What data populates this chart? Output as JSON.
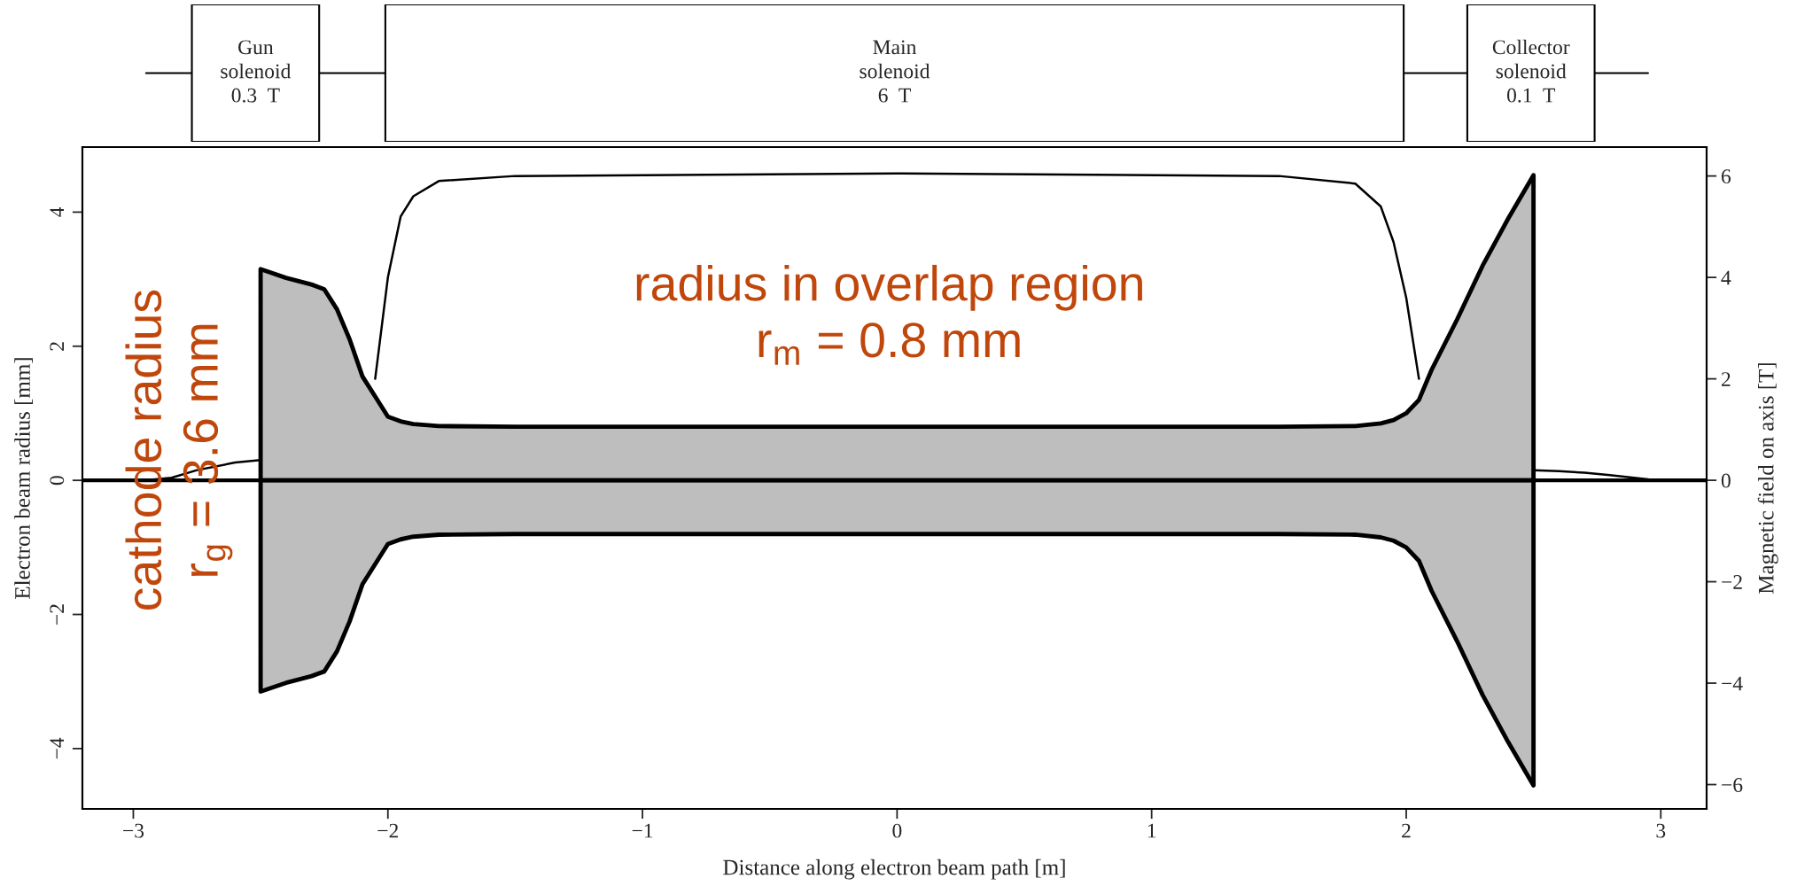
{
  "chart_data": {
    "type": "area",
    "xlabel": "Distance along electron beam path [m]",
    "ylabel": "Electron beam radius [mm]",
    "y2label": "Magnetic field on axis [T]",
    "annotations": [
      "Gun\nsolenoid\n0.3  T",
      "Main\nsolenoid\n6  T",
      "Collector\nsolenoid\n0.1  T",
      "radius in overlap region\nr$_{m}$ = 0.8 mm",
      "cathode radius\nr$_{g}$ = 3.6 mm"
    ],
    "series": [
      {
        "color": "#bebebe",
        "x": [
          -2.5,
          -2.4,
          -2.3,
          -2.25,
          -2.2,
          -2.15,
          -2.1,
          -2.05,
          -2.0,
          -1.95,
          -1.9,
          -1.8,
          -1.5,
          0,
          1.5,
          1.8,
          1.9,
          1.95,
          2.0,
          2.05,
          2.1,
          2.2,
          2.3,
          2.4,
          2.5
        ],
        "values": [
          3.15,
          3.02,
          2.92,
          2.85,
          2.55,
          2.1,
          1.55,
          1.25,
          0.95,
          0.88,
          0.84,
          0.81,
          0.8,
          0.8,
          0.8,
          0.81,
          0.85,
          0.9,
          1.0,
          1.2,
          1.65,
          2.4,
          3.2,
          3.9,
          4.55
        ]
      },
      {
        "color": "#bebebe",
        "x": [
          -2.5,
          -2.4,
          -2.3,
          -2.25,
          -2.2,
          -2.15,
          -2.1,
          -2.05,
          -2.0,
          -1.95,
          -1.9,
          -1.8,
          -1.5,
          0,
          1.5,
          1.8,
          1.9,
          1.95,
          2.0,
          2.05,
          2.1,
          2.2,
          2.3,
          2.4,
          2.5
        ],
        "values": [
          -3.15,
          -3.02,
          -2.92,
          -2.85,
          -2.55,
          -2.1,
          -1.55,
          -1.25,
          -0.95,
          -0.88,
          -0.84,
          -0.81,
          -0.8,
          -0.8,
          -0.8,
          -0.81,
          -0.85,
          -0.9,
          -1.0,
          -1.2,
          -1.65,
          -2.4,
          -3.2,
          -3.9,
          -4.55
        ]
      },
      {
        "type": "line",
        "axis": "y2",
        "color": "#000000",
        "x": [
          -2.95,
          -2.85,
          -2.75,
          -2.6,
          -2.5,
          -2.3,
          -2.05,
          -2.0,
          -1.95,
          -1.9,
          -1.8,
          -1.5,
          0,
          1.5,
          1.8,
          1.9,
          1.95,
          2.0,
          2.05,
          2.3,
          2.5,
          2.6,
          2.7,
          2.8,
          2.95
        ],
        "values": [
          0.0,
          0.05,
          0.2,
          0.35,
          0.4,
          null,
          2.0,
          4.0,
          5.2,
          5.6,
          5.9,
          6.0,
          6.05,
          6.0,
          5.85,
          5.4,
          4.7,
          3.6,
          2.0,
          null,
          0.2,
          0.18,
          0.15,
          0.1,
          0.02
        ]
      }
    ],
    "xlim": [
      -3.2,
      3.18
    ],
    "ylim": [
      -4.9,
      4.97
    ],
    "y2lim": [
      -6.48,
      6.57
    ],
    "xticks": [
      {
        "value": -3,
        "label": "−3"
      },
      {
        "value": -2,
        "label": "−2"
      },
      {
        "value": -1,
        "label": "−1"
      },
      0,
      1,
      2,
      3
    ],
    "yticks": [
      {
        "value": -4,
        "label": "−4"
      },
      {
        "value": -2,
        "label": "−2"
      },
      0,
      2,
      4
    ],
    "y2ticks": [
      {
        "value": -6,
        "label": "−6"
      },
      {
        "value": -4,
        "label": "−4"
      },
      {
        "value": -2,
        "label": "−2"
      },
      0,
      2,
      4,
      6
    ],
    "ref_lines": [
      {
        "axis": "y",
        "value": 0,
        "color": "#000000"
      }
    ],
    "grid": false
  }
}
